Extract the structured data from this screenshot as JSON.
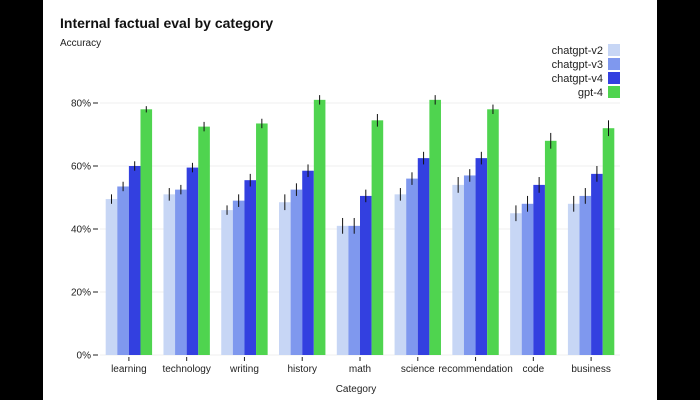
{
  "chart_data": {
    "type": "bar",
    "title": "Internal factual eval by category",
    "ylabel": "Accuracy",
    "xlabel": "Category",
    "ylim": [
      0,
      100
    ],
    "yticks": [
      0,
      20,
      40,
      60,
      80
    ],
    "ytick_labels": [
      "0%",
      "20%",
      "40%",
      "60%",
      "80%"
    ],
    "grid": true,
    "legend_position": "top-right",
    "categories": [
      "learning",
      "technology",
      "writing",
      "history",
      "math",
      "science",
      "recommendation",
      "code",
      "business"
    ],
    "series": [
      {
        "name": "chatgpt-v2",
        "color": "#c7d6f5",
        "values": [
          49.5,
          51,
          46,
          48.5,
          41,
          51,
          54,
          45,
          48
        ],
        "errors": [
          1.5,
          2,
          1.5,
          2.5,
          2.5,
          2,
          2.5,
          2.5,
          2.5
        ]
      },
      {
        "name": "chatgpt-v3",
        "color": "#7f98ee",
        "values": [
          53.5,
          52.5,
          49,
          52.5,
          41,
          56,
          57,
          48,
          50.5
        ],
        "errors": [
          1.5,
          1.5,
          2,
          2,
          2.5,
          2,
          2,
          2.5,
          2.5
        ]
      },
      {
        "name": "chatgpt-v4",
        "color": "#3340e0",
        "values": [
          60,
          59.5,
          55.5,
          58.5,
          50.5,
          62.5,
          62.5,
          54,
          57.5
        ],
        "errors": [
          1.5,
          1.5,
          2,
          2,
          2,
          2,
          2,
          2.5,
          2.5
        ]
      },
      {
        "name": "gpt-4",
        "color": "#4fd44f",
        "values": [
          78,
          72.5,
          73.5,
          81,
          74.5,
          81,
          78,
          68,
          72
        ],
        "errors": [
          1,
          1.5,
          1.5,
          1.5,
          2,
          1.5,
          1.5,
          2.5,
          2.5
        ]
      }
    ]
  }
}
